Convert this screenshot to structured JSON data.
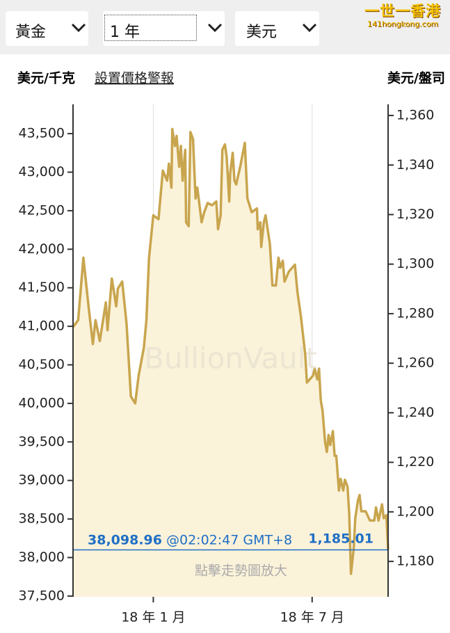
{
  "ui": {
    "selectors": [
      "黃金",
      "1 年",
      "美元"
    ],
    "logo": "一世一香港",
    "logo_sub": "141hongkong.com",
    "alert_link": "設置價格警報",
    "watermark": "BullionVault",
    "hint": "點擊走勢圖放大"
  },
  "chart_data": {
    "type": "area",
    "ylabel": "美元/千克",
    "y2label": "美元/盤司",
    "x": [
      0,
      6,
      12,
      18,
      23,
      26,
      31,
      38,
      40,
      45,
      50,
      52,
      57,
      62,
      67,
      72,
      76,
      82,
      85,
      88,
      93,
      99,
      104,
      109,
      111,
      114,
      115,
      118,
      120,
      123,
      125,
      127,
      130,
      131,
      134,
      136,
      139,
      142,
      144,
      149,
      152,
      156,
      161,
      166,
      168,
      171,
      173,
      176,
      178,
      181,
      182,
      185,
      187,
      189,
      194,
      199,
      202,
      207,
      213,
      214,
      217,
      218,
      221,
      223,
      228,
      231,
      235,
      238,
      240,
      243,
      245,
      250,
      257,
      260,
      264,
      269,
      271,
      278,
      280,
      283,
      285,
      287,
      289,
      292,
      294,
      296,
      298,
      301,
      303,
      305,
      308,
      310,
      313,
      315,
      318,
      320,
      322,
      325,
      327,
      330,
      332,
      334,
      339,
      344,
      349,
      351,
      354,
      358,
      360,
      363,
      365
    ],
    "series": [
      {
        "name": "黃金",
        "color": "#c8a54e",
        "fill": "#fbf2da",
        "values": [
          40990,
          41080,
          41890,
          41260,
          40770,
          41080,
          40810,
          41310,
          40950,
          41620,
          41260,
          41490,
          41580,
          41040,
          40090,
          40000,
          40360,
          40720,
          41080,
          41880,
          42440,
          42390,
          43020,
          42890,
          43110,
          42800,
          43560,
          43340,
          43470,
          43070,
          43340,
          42890,
          43290,
          42350,
          42300,
          43520,
          43430,
          42660,
          42800,
          42350,
          42480,
          42600,
          42570,
          42620,
          42260,
          42440,
          43290,
          43360,
          43200,
          42620,
          42980,
          43250,
          42890,
          42840,
          43090,
          43380,
          42660,
          42480,
          42530,
          42260,
          42350,
          42030,
          42350,
          42440,
          42070,
          41530,
          41530,
          41890,
          41760,
          41850,
          41580,
          41710,
          41800,
          41440,
          41130,
          40630,
          40270,
          40360,
          40450,
          40310,
          40450,
          40040,
          39910,
          39500,
          39370,
          39590,
          39460,
          39640,
          39320,
          39320,
          38870,
          39020,
          38870,
          39010,
          38920,
          38550,
          37790,
          38100,
          38510,
          38740,
          38810,
          38600,
          38600,
          38480,
          38480,
          38650,
          38480,
          38690,
          38510,
          38550,
          38100
        ]
      }
    ],
    "xlim": [
      0,
      365
    ],
    "xticks": [
      {
        "value": 93,
        "label": "18 年 1 月"
      },
      {
        "value": 277,
        "label": "18 年 7 月"
      }
    ],
    "ylim": [
      37490,
      43880
    ],
    "yticks": [
      {
        "value": 37500,
        "label": "37,500"
      },
      {
        "value": 38000,
        "label": "38,000"
      },
      {
        "value": 38500,
        "label": "38,500"
      },
      {
        "value": 39000,
        "label": "39,000"
      },
      {
        "value": 39500,
        "label": "39,500"
      },
      {
        "value": 40000,
        "label": "40,000"
      },
      {
        "value": 40500,
        "label": "40,500"
      },
      {
        "value": 41000,
        "label": "41,000"
      },
      {
        "value": 41500,
        "label": "41,500"
      },
      {
        "value": 42000,
        "label": "42,000"
      },
      {
        "value": 42500,
        "label": "42,500"
      },
      {
        "value": 43000,
        "label": "43,000"
      },
      {
        "value": 43500,
        "label": "43,500"
      }
    ],
    "y2lim": [
      1165.7,
      1364.5
    ],
    "y2ticks": [
      {
        "value": 1180,
        "label": "1,180"
      },
      {
        "value": 1200,
        "label": "1,200"
      },
      {
        "value": 1220,
        "label": "1,220"
      },
      {
        "value": 1240,
        "label": "1,240"
      },
      {
        "value": 1260,
        "label": "1,260"
      },
      {
        "value": 1280,
        "label": "1,280"
      },
      {
        "value": 1300,
        "label": "1,300"
      },
      {
        "value": 1320,
        "label": "1,320"
      },
      {
        "value": 1340,
        "label": "1,340"
      },
      {
        "value": 1360,
        "label": "1,360"
      }
    ],
    "grid": "x",
    "current": {
      "value": 38098.96,
      "label": "38,098.96",
      "time": "@02:02:47 GMT+8",
      "value2": 1185.01,
      "label2": "1,185.01",
      "color": "#1f6fc5"
    }
  }
}
